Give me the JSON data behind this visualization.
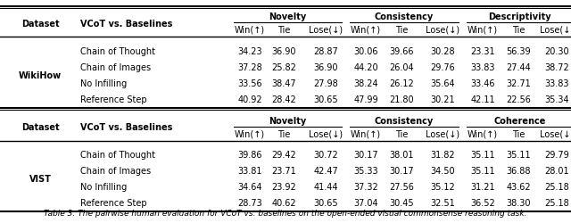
{
  "table1_rows": [
    [
      "Chain of Thought",
      "34.23",
      "36.90",
      "28.87",
      "30.06",
      "39.66",
      "30.28",
      "23.31",
      "56.39",
      "20.30"
    ],
    [
      "Chain of Images",
      "37.28",
      "25.82",
      "36.90",
      "44.20",
      "26.04",
      "29.76",
      "33.83",
      "27.44",
      "38.72"
    ],
    [
      "No Infilling",
      "33.56",
      "38.47",
      "27.98",
      "38.24",
      "26.12",
      "35.64",
      "33.46",
      "32.71",
      "33.83"
    ],
    [
      "Reference Step",
      "40.92",
      "28.42",
      "30.65",
      "47.99",
      "21.80",
      "30.21",
      "42.11",
      "22.56",
      "35.34"
    ]
  ],
  "table1_dataset": "WikiHow",
  "table1_third_group": "Descriptivity",
  "table2_rows": [
    [
      "Chain of Thought",
      "39.86",
      "29.42",
      "30.72",
      "30.17",
      "38.01",
      "31.82",
      "35.11",
      "35.11",
      "29.79"
    ],
    [
      "Chain of Images",
      "33.81",
      "23.71",
      "42.47",
      "35.33",
      "30.17",
      "34.50",
      "35.11",
      "36.88",
      "28.01"
    ],
    [
      "No Infilling",
      "34.64",
      "23.92",
      "41.44",
      "37.32",
      "27.56",
      "35.12",
      "31.21",
      "43.62",
      "25.18"
    ],
    [
      "Reference Step",
      "28.73",
      "40.62",
      "30.65",
      "37.04",
      "30.45",
      "32.51",
      "36.52",
      "38.30",
      "25.18"
    ]
  ],
  "table2_dataset": "VIST",
  "table2_third_group": "Coherence",
  "caption": "Table 3: The pairwise human evaluation for VCoT vs. baselines on the open-ended visual commonsense reasoning task.",
  "bg_color": "#ffffff",
  "font_size": 7.0
}
